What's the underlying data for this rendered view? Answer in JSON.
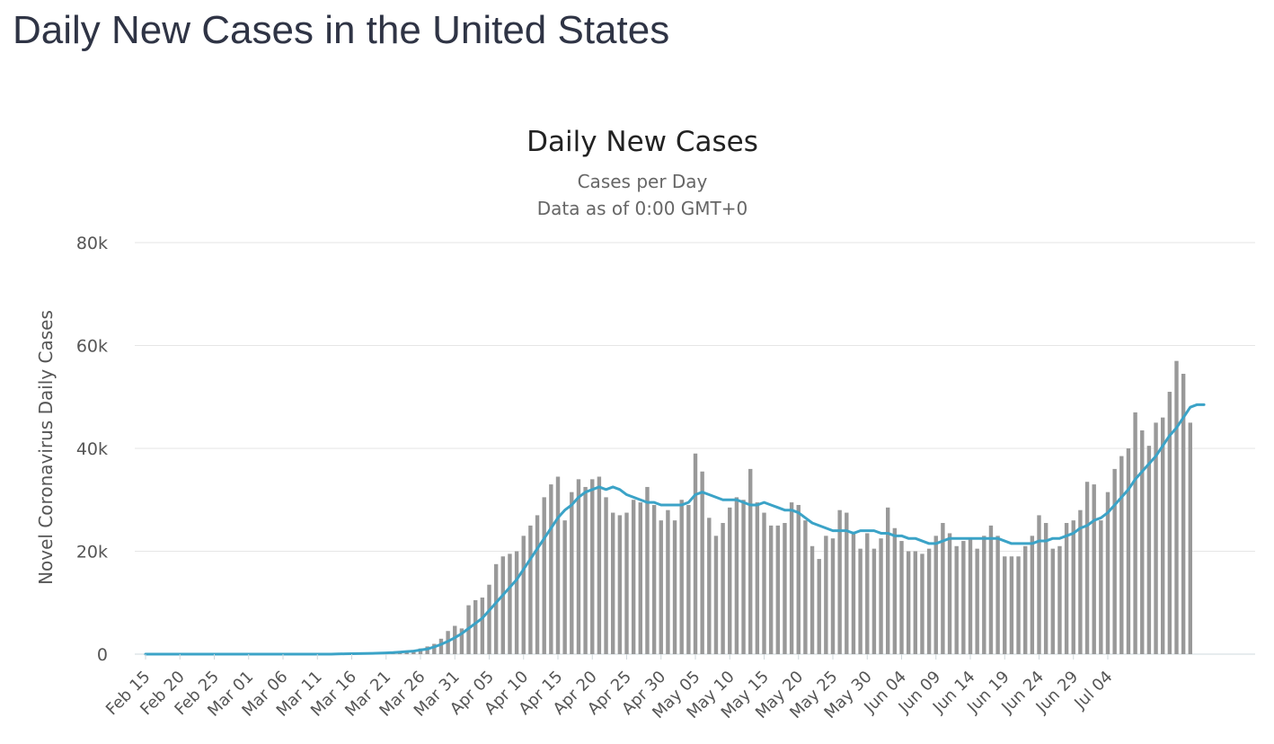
{
  "page": {
    "heading": "Daily New Cases in the United States"
  },
  "chart_data": {
    "type": "bar",
    "title": "Daily New Cases",
    "subtitle": [
      "Cases per Day",
      "Data as of 0:00 GMT+0"
    ],
    "ylabel": "Novel Coronavirus Daily Cases",
    "xlabel": "",
    "ylim": [
      0,
      80000
    ],
    "yticks": [
      0,
      20000,
      40000,
      60000,
      80000
    ],
    "ytick_labels": [
      "0",
      "20k",
      "40k",
      "60k",
      "80k"
    ],
    "x_tick_labels": [
      "Feb 15",
      "Feb 20",
      "Feb 25",
      "Mar 01",
      "Mar 06",
      "Mar 11",
      "Mar 16",
      "Mar 21",
      "Mar 26",
      "Mar 31",
      "Apr 05",
      "Apr 10",
      "Apr 15",
      "Apr 20",
      "Apr 25",
      "Apr 30",
      "May 05",
      "May 10",
      "May 15",
      "May 20",
      "May 25",
      "May 30",
      "Jun 04",
      "Jun 09",
      "Jun 14",
      "Jun 19",
      "Jun 24",
      "Jun 29",
      "Jul 04"
    ],
    "grid": true,
    "colors": {
      "bars": "#999999",
      "moving_average": "#3ba3c7",
      "grid": "#e6e6e6"
    },
    "x_start": "Feb 15",
    "x_end": "Jul 04",
    "series": [
      {
        "type": "bar",
        "values": [
          0,
          0,
          0,
          0,
          0,
          0,
          0,
          0,
          0,
          0,
          0,
          0,
          0,
          0,
          0,
          0,
          0,
          0,
          0,
          0,
          0,
          0,
          0,
          0,
          0,
          0,
          0,
          0,
          50,
          80,
          100,
          120,
          150,
          200,
          250,
          300,
          400,
          500,
          600,
          800,
          1100,
          1500,
          2000,
          3000,
          4500,
          5500,
          5000,
          9500,
          10500,
          11000,
          13500,
          17500,
          19000,
          19500,
          20000,
          23000,
          25000,
          27000,
          30500,
          33000,
          34500,
          26000,
          31500,
          34000,
          32500,
          34000,
          34500,
          30500,
          27500,
          27000,
          27500,
          30000,
          29500,
          32500,
          29000,
          26000,
          28000,
          26000,
          30000,
          29000,
          39000,
          35500,
          26500,
          23000,
          25500,
          28500,
          30500,
          30000,
          36000,
          29500,
          27500,
          25000,
          25000,
          25500,
          29500,
          29000,
          26000,
          21000,
          18500,
          23000,
          22500,
          28000,
          27500,
          23500,
          20500,
          23500,
          20500,
          22500,
          28500,
          24500,
          22000,
          20000,
          20000,
          19500,
          20500,
          23000,
          25500,
          23500,
          21000,
          22000,
          22500,
          20500,
          23000,
          25000,
          23000,
          19000,
          19000,
          19000,
          21000,
          23000,
          27000,
          25500,
          20500,
          21000,
          25500,
          26000,
          28000,
          33500,
          33000,
          26000,
          31500,
          36000,
          38500,
          40000,
          47000,
          43500,
          40500,
          45000,
          46000,
          51000,
          57000,
          54500,
          45000
        ]
      },
      {
        "type": "line",
        "values": [
          0,
          0,
          0,
          0,
          0,
          0,
          0,
          0,
          0,
          0,
          0,
          0,
          0,
          0,
          0,
          0,
          0,
          0,
          0,
          0,
          0,
          0,
          0,
          0,
          0,
          0,
          0,
          0,
          40,
          60,
          80,
          100,
          120,
          150,
          200,
          250,
          300,
          400,
          500,
          600,
          800,
          1000,
          1400,
          1900,
          2500,
          3200,
          4000,
          5000,
          6000,
          7000,
          8500,
          10000,
          11500,
          13000,
          14500,
          16500,
          18500,
          20500,
          22500,
          24500,
          26500,
          28000,
          29000,
          30500,
          31500,
          32000,
          32500,
          32000,
          32500,
          32000,
          31000,
          30500,
          30000,
          29500,
          29500,
          29000,
          29000,
          29000,
          29000,
          29500,
          31000,
          31500,
          31000,
          30500,
          30000,
          30000,
          30000,
          29500,
          29000,
          29000,
          29500,
          29000,
          28500,
          28000,
          28000,
          27500,
          26500,
          25500,
          25000,
          24500,
          24000,
          24000,
          24000,
          23500,
          24000,
          24000,
          24000,
          23500,
          23500,
          23000,
          23000,
          22500,
          22500,
          22000,
          21500,
          21500,
          22000,
          22500,
          22500,
          22500,
          22500,
          22500,
          22500,
          22500,
          22500,
          22000,
          21500,
          21500,
          21500,
          21500,
          22000,
          22000,
          22500,
          22500,
          23000,
          23500,
          24500,
          25000,
          26000,
          26500,
          27500,
          29000,
          30500,
          32000,
          34000,
          35500,
          37000,
          38500,
          40500,
          42500,
          44000,
          46000,
          48000,
          48500,
          48500
        ]
      }
    ]
  }
}
